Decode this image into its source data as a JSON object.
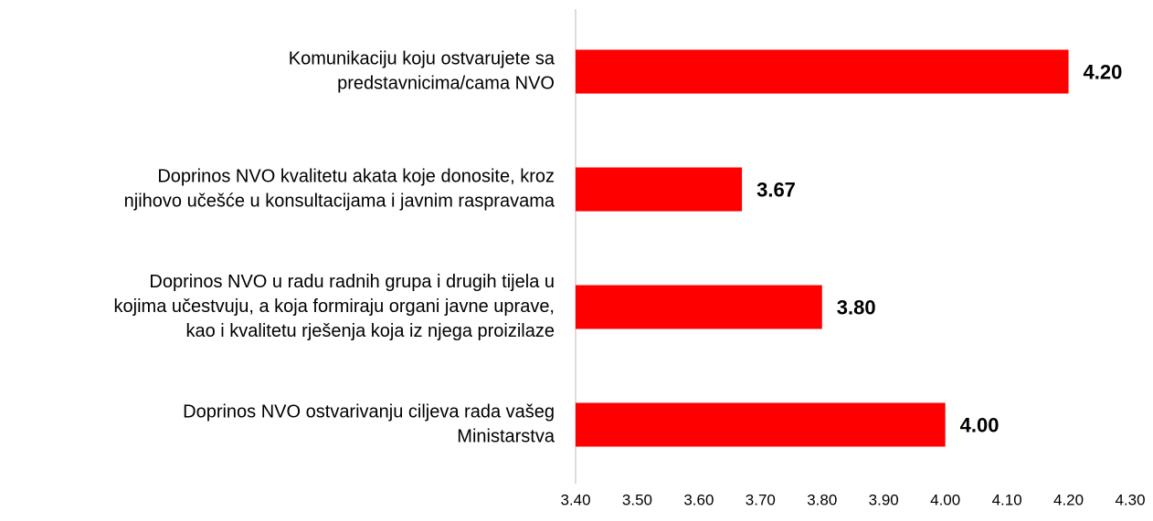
{
  "chart_data": {
    "type": "barh",
    "categories": [
      [
        "Komunikaciju  koju ostvarujete sa",
        "predstavnicima/cama NVO"
      ],
      [
        "Doprinos NVO kvalitetu akata koje donosite, kroz",
        "njihovo učešće u konsultacijama i javnim raspravama"
      ],
      [
        "Doprinos NVO u radu radnih grupa i drugih tijela u",
        "kojima učestvuju, a koja formiraju organi javne uprave,",
        "kao i kvalitetu rješenja koja iz njega proizilaze"
      ],
      [
        "Doprinos NVO ostvarivanju ciljeva rada vašeg",
        "Ministarstva"
      ]
    ],
    "values": [
      4.2,
      3.67,
      3.8,
      4.0
    ],
    "value_labels": [
      "4.20",
      "3.67",
      "3.80",
      "4.00"
    ],
    "color": "#ff0000",
    "xlim": [
      3.4,
      4.3
    ],
    "xticks": [
      {
        "value": 3.4,
        "label": "3.40"
      },
      {
        "value": 3.5,
        "label": "3.50"
      },
      {
        "value": 3.6,
        "label": "3.60"
      },
      {
        "value": 3.7,
        "label": "3.70"
      },
      {
        "value": 3.8,
        "label": "3.80"
      },
      {
        "value": 3.9,
        "label": "3.90"
      },
      {
        "value": 4.0,
        "label": "4.00"
      },
      {
        "value": 4.1,
        "label": "4.10"
      },
      {
        "value": 4.2,
        "label": "4.20"
      },
      {
        "value": 4.3,
        "label": "4.30"
      }
    ],
    "grid": false
  }
}
